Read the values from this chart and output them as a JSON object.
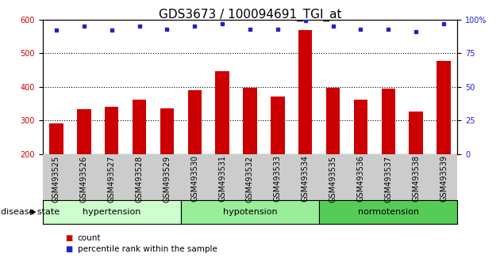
{
  "title": "GDS3673 / 100094691_TGI_at",
  "samples": [
    "GSM493525",
    "GSM493526",
    "GSM493527",
    "GSM493528",
    "GSM493529",
    "GSM493530",
    "GSM493531",
    "GSM493532",
    "GSM493533",
    "GSM493534",
    "GSM493535",
    "GSM493536",
    "GSM493537",
    "GSM493538",
    "GSM493539"
  ],
  "counts": [
    290,
    333,
    340,
    362,
    335,
    390,
    446,
    397,
    370,
    568,
    397,
    362,
    395,
    327,
    478
  ],
  "percentiles": [
    92,
    95,
    92,
    95,
    93,
    95,
    97,
    93,
    93,
    99,
    95,
    93,
    93,
    91,
    97
  ],
  "groups": [
    {
      "label": "hypertension",
      "start": 0,
      "end": 5
    },
    {
      "label": "hypotension",
      "start": 5,
      "end": 10
    },
    {
      "label": "normotension",
      "start": 10,
      "end": 15
    }
  ],
  "bar_color": "#cc0000",
  "dot_color": "#2222cc",
  "ylim_left": [
    200,
    600
  ],
  "ylim_right": [
    0,
    100
  ],
  "yticks_left": [
    200,
    300,
    400,
    500,
    600
  ],
  "yticks_right": [
    0,
    25,
    50,
    75,
    100
  ],
  "grid_values": [
    300,
    400,
    500
  ],
  "group_colors": [
    "#ccffcc",
    "#99ee99",
    "#55cc55"
  ],
  "tick_bg_color": "#cccccc",
  "title_fontsize": 11,
  "tick_fontsize": 7,
  "group_fontsize": 8,
  "legend_fontsize": 7.5,
  "disease_state_fontsize": 8
}
